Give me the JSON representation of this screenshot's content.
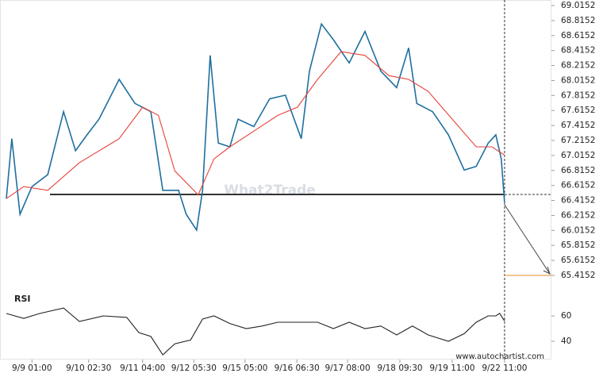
{
  "chart_data": [
    {
      "type": "line",
      "watermark": "What2Trade",
      "source": "www.autochartist.com",
      "xlim": [
        0,
        100
      ],
      "ylim": [
        65.4152,
        69.0152
      ],
      "yticks": [
        69.0152,
        68.8152,
        68.6152,
        68.4152,
        68.2152,
        68.0152,
        67.8152,
        67.6152,
        67.4152,
        67.2152,
        67.0152,
        66.8152,
        66.6152,
        66.4152,
        66.2152,
        66.0152,
        65.8152,
        65.6152,
        65.4152
      ],
      "xticks": [
        {
          "value": 4.7,
          "label": "9/9 01:00"
        },
        {
          "value": 15.1,
          "label": "9/10 02:30"
        },
        {
          "value": 25.0,
          "label": "9/11 04:00"
        },
        {
          "value": 34.4,
          "label": "9/12 05:30"
        },
        {
          "value": 43.8,
          "label": "9/15 05:00"
        },
        {
          "value": 53.3,
          "label": "9/16 06:30"
        },
        {
          "value": 62.6,
          "label": "9/17 08:00"
        },
        {
          "value": 72.2,
          "label": "9/18 09:30"
        },
        {
          "value": 81.8,
          "label": "9/19 11:00"
        },
        {
          "value": 91.4,
          "label": "9/22 11:00"
        }
      ],
      "support": 66.495,
      "target": 65.4152,
      "series": [
        {
          "color": "#1f6f9f",
          "x": [
            0,
            1.0,
            2.5,
            4.7,
            7.6,
            10.5,
            12.7,
            14.8,
            17.0,
            20.7,
            23.6,
            26.5,
            28.7,
            31.6,
            33.0,
            34.9,
            36.0,
            37.4,
            38.9,
            41.0,
            42.5,
            45.4,
            48.3,
            51.2,
            54.1,
            55.6,
            57.8,
            60.0,
            62.9,
            65.8,
            68.7,
            71.6,
            73.8,
            75.3,
            78.2,
            81.1,
            84.0,
            86.2,
            88.4,
            89.8,
            90.8,
            91.4
          ],
          "values": [
            66.44,
            67.24,
            66.23,
            66.6,
            66.76,
            67.6,
            67.08,
            67.29,
            67.5,
            68.03,
            67.71,
            67.6,
            66.55,
            66.55,
            66.23,
            66.02,
            66.55,
            68.35,
            67.18,
            67.13,
            67.5,
            67.4,
            67.77,
            67.82,
            67.24,
            68.14,
            68.77,
            68.56,
            68.25,
            68.67,
            68.14,
            67.92,
            68.45,
            67.71,
            67.6,
            67.29,
            66.82,
            66.87,
            67.18,
            67.29,
            66.97,
            66.39
          ]
        },
        {
          "color": "#e8423b",
          "x": [
            0,
            3.2,
            7.6,
            13.4,
            20.7,
            25.0,
            27.9,
            30.9,
            35.2,
            38.1,
            41.0,
            45.4,
            49.8,
            53.4,
            57.1,
            61.4,
            65.8,
            70.2,
            73.8,
            77.4,
            81.8,
            86.2,
            89.1,
            91.4
          ],
          "values": [
            66.44,
            66.6,
            66.55,
            66.92,
            67.24,
            67.66,
            67.55,
            66.81,
            66.49,
            66.97,
            67.13,
            67.34,
            67.55,
            67.66,
            68.03,
            68.4,
            68.35,
            68.08,
            68.03,
            67.87,
            67.5,
            67.13,
            67.13,
            67.02
          ]
        }
      ]
    },
    {
      "type": "line",
      "title": "RSI",
      "xlim": [
        0,
        100
      ],
      "ylim": [
        25,
        70
      ],
      "yticks": [
        60,
        40
      ],
      "series": [
        {
          "color": "#222222",
          "x": [
            0,
            3.2,
            6.1,
            10.5,
            13.4,
            17.8,
            22.1,
            24.3,
            26.5,
            28.7,
            30.9,
            33.8,
            36.0,
            38.1,
            41.0,
            44.0,
            46.9,
            49.8,
            53.4,
            57.1,
            60.0,
            62.9,
            65.8,
            68.7,
            71.6,
            74.5,
            77.4,
            81.1,
            84.0,
            86.2,
            88.4,
            89.8,
            90.5,
            91.4
          ],
          "values": [
            61.9,
            58,
            61.9,
            66.2,
            55.6,
            60,
            58.8,
            46.9,
            43.8,
            29.4,
            38,
            41,
            57.5,
            60,
            54,
            50,
            52,
            55,
            55,
            55,
            50,
            55,
            50,
            52,
            45,
            52,
            45,
            40,
            46,
            55,
            60,
            60,
            62,
            56
          ]
        }
      ]
    }
  ]
}
